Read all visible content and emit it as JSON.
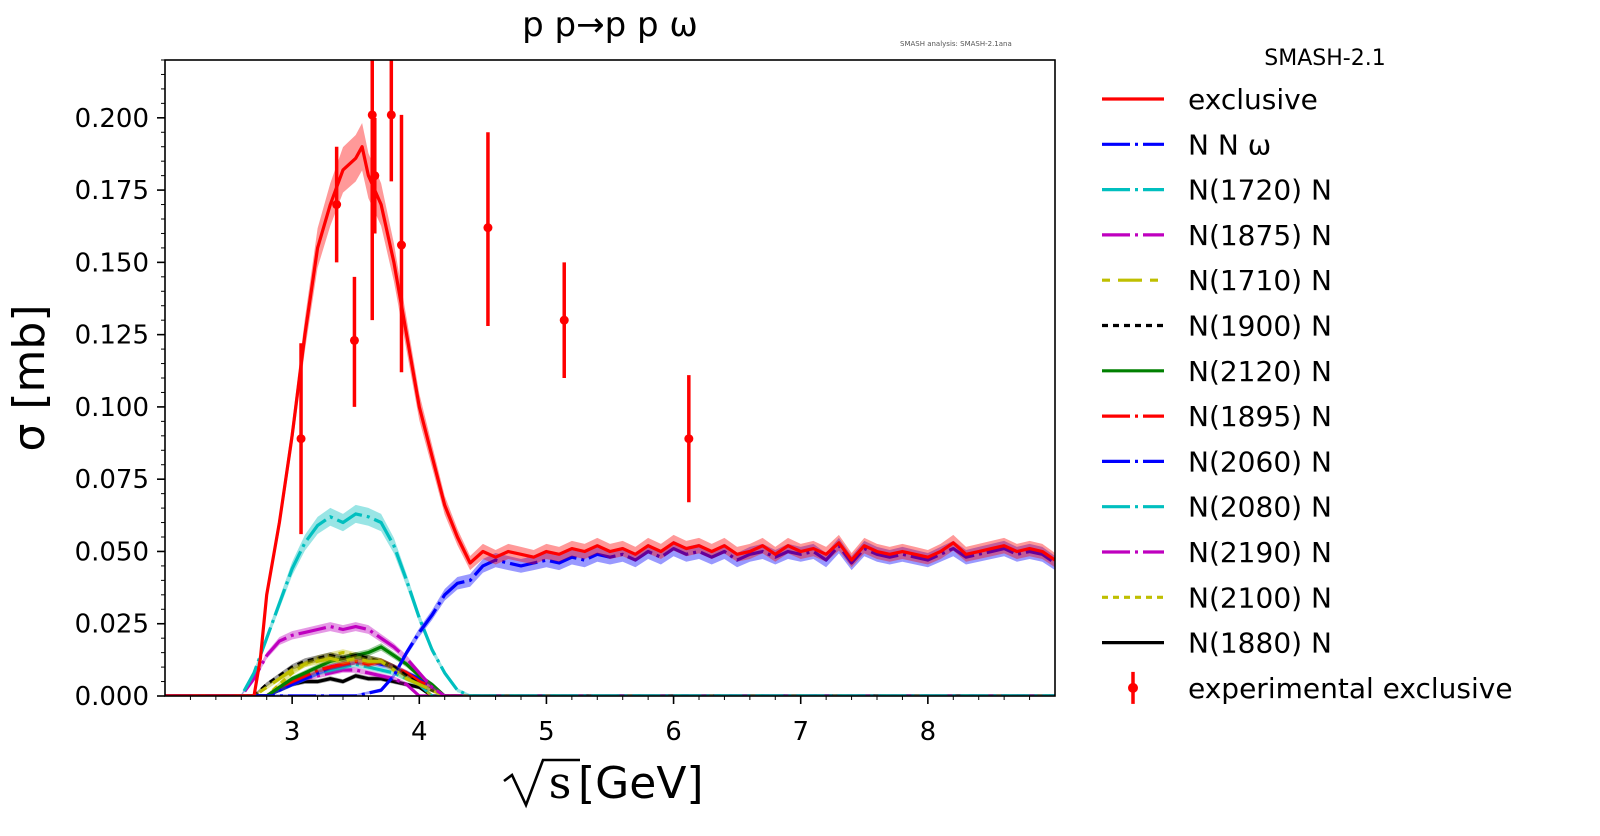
{
  "chart_data": {
    "type": "line",
    "title": "p p→p p ω",
    "version_note": "SMASH analysis: SMASH-2.1ana",
    "xlabel": "√s [GeV]",
    "xlabel_radicand": "s",
    "xlabel_unit": "[GeV]",
    "ylabel": "σ [mb]",
    "xlim": [
      2.0,
      9.0
    ],
    "ylim": [
      0.0,
      0.22
    ],
    "x_ticks": [
      3,
      4,
      5,
      6,
      7,
      8
    ],
    "x_tick_labels": [
      "3",
      "4",
      "5",
      "6",
      "7",
      "8"
    ],
    "y_ticks": [
      0.0,
      0.025,
      0.05,
      0.075,
      0.1,
      0.125,
      0.15,
      0.175,
      0.2
    ],
    "y_tick_labels": [
      "0.000",
      "0.025",
      "0.050",
      "0.075",
      "0.100",
      "0.125",
      "0.150",
      "0.175",
      "0.200"
    ],
    "grid": false,
    "legend": {
      "placement": "outside-right",
      "title": "SMASH-2.1"
    },
    "series": [
      {
        "name": "exclusive",
        "color": "#ff0000",
        "dash": "solid",
        "x": [
          2.0,
          2.7,
          2.75,
          2.8,
          2.9,
          3.0,
          3.1,
          3.2,
          3.3,
          3.4,
          3.5,
          3.55,
          3.6,
          3.7,
          3.8,
          3.9,
          4.0,
          4.1,
          4.2,
          4.3,
          4.4,
          4.5,
          4.6,
          4.7,
          4.8,
          4.9,
          5.0,
          5.1,
          5.2,
          5.3,
          5.4,
          5.5,
          5.6,
          5.7,
          5.8,
          5.9,
          6.0,
          6.1,
          6.2,
          6.3,
          6.4,
          6.5,
          6.6,
          6.7,
          6.8,
          6.9,
          7.0,
          7.1,
          7.2,
          7.3,
          7.4,
          7.5,
          7.6,
          7.7,
          7.8,
          7.9,
          8.0,
          8.1,
          8.2,
          8.3,
          8.4,
          8.5,
          8.6,
          8.7,
          8.8,
          8.9,
          9.0
        ],
        "y": [
          0.0,
          0.0,
          0.013,
          0.035,
          0.06,
          0.09,
          0.125,
          0.155,
          0.17,
          0.182,
          0.186,
          0.19,
          0.18,
          0.17,
          0.15,
          0.125,
          0.1,
          0.083,
          0.066,
          0.055,
          0.046,
          0.05,
          0.048,
          0.05,
          0.049,
          0.048,
          0.05,
          0.049,
          0.051,
          0.05,
          0.052,
          0.05,
          0.051,
          0.049,
          0.052,
          0.05,
          0.053,
          0.051,
          0.052,
          0.05,
          0.052,
          0.049,
          0.05,
          0.052,
          0.049,
          0.052,
          0.05,
          0.051,
          0.049,
          0.053,
          0.047,
          0.052,
          0.05,
          0.049,
          0.05,
          0.049,
          0.048,
          0.05,
          0.053,
          0.049,
          0.05,
          0.051,
          0.052,
          0.05,
          0.051,
          0.05,
          0.047
        ]
      },
      {
        "name": "N N ω",
        "color": "#0000ff",
        "dash": "long-dash-dot",
        "x": [
          2.0,
          3.5,
          3.7,
          3.8,
          3.9,
          4.0,
          4.1,
          4.2,
          4.3,
          4.4,
          4.5,
          4.6,
          4.7,
          4.8,
          4.9,
          5.0,
          5.1,
          5.2,
          5.3,
          5.4,
          5.5,
          5.6,
          5.7,
          5.8,
          5.9,
          6.0,
          6.1,
          6.2,
          6.3,
          6.4,
          6.5,
          6.6,
          6.7,
          6.8,
          6.9,
          7.0,
          7.1,
          7.2,
          7.3,
          7.4,
          7.5,
          7.6,
          7.7,
          7.8,
          7.9,
          8.0,
          8.1,
          8.2,
          8.3,
          8.4,
          8.5,
          8.6,
          8.7,
          8.8,
          8.9,
          9.0
        ],
        "y": [
          0.0,
          0.0,
          0.002,
          0.007,
          0.015,
          0.022,
          0.028,
          0.035,
          0.039,
          0.04,
          0.045,
          0.047,
          0.046,
          0.045,
          0.046,
          0.047,
          0.046,
          0.048,
          0.047,
          0.049,
          0.048,
          0.049,
          0.047,
          0.05,
          0.048,
          0.051,
          0.049,
          0.05,
          0.048,
          0.05,
          0.047,
          0.049,
          0.05,
          0.048,
          0.05,
          0.049,
          0.05,
          0.047,
          0.052,
          0.046,
          0.051,
          0.049,
          0.048,
          0.049,
          0.048,
          0.047,
          0.049,
          0.051,
          0.048,
          0.049,
          0.05,
          0.051,
          0.049,
          0.05,
          0.049,
          0.046
        ]
      },
      {
        "name": "N(1720) N",
        "color": "#00bfbf",
        "dash": "long-dash-dot",
        "x": [
          2.0,
          2.6,
          2.7,
          2.8,
          2.9,
          3.0,
          3.1,
          3.2,
          3.3,
          3.4,
          3.5,
          3.6,
          3.7,
          3.8,
          3.9,
          4.0,
          4.1,
          4.2,
          4.3,
          4.4,
          9.0
        ],
        "y": [
          0.0,
          0.0,
          0.008,
          0.02,
          0.032,
          0.044,
          0.053,
          0.059,
          0.062,
          0.06,
          0.063,
          0.062,
          0.06,
          0.052,
          0.04,
          0.027,
          0.016,
          0.008,
          0.002,
          0.0,
          0.0
        ]
      },
      {
        "name": "N(1875) N",
        "color": "#bf00bf",
        "dash": "long-dash-dot",
        "x": [
          2.0,
          2.6,
          2.7,
          2.8,
          2.9,
          3.0,
          3.1,
          3.2,
          3.3,
          3.4,
          3.5,
          3.6,
          3.7,
          3.8,
          3.9,
          4.0,
          4.1,
          4.2,
          9.0
        ],
        "y": [
          0.0,
          0.0,
          0.006,
          0.014,
          0.019,
          0.021,
          0.022,
          0.023,
          0.024,
          0.023,
          0.024,
          0.023,
          0.02,
          0.017,
          0.013,
          0.008,
          0.003,
          0.0,
          0.0
        ]
      },
      {
        "name": "N(1710) N",
        "color": "#bfbf00",
        "dash": "dash-long-dash",
        "x": [
          2.0,
          2.7,
          2.8,
          2.9,
          3.0,
          3.1,
          3.2,
          3.3,
          3.4,
          3.5,
          3.6,
          3.7,
          3.8,
          3.9,
          4.0,
          4.1,
          4.2,
          9.0
        ],
        "y": [
          0.0,
          0.0,
          0.003,
          0.006,
          0.009,
          0.011,
          0.012,
          0.013,
          0.012,
          0.013,
          0.012,
          0.012,
          0.009,
          0.006,
          0.004,
          0.002,
          0.0,
          0.0
        ]
      },
      {
        "name": "N(1900) N",
        "color": "#000000",
        "dash": "short-dash",
        "x": [
          2.0,
          2.7,
          2.8,
          2.9,
          3.0,
          3.1,
          3.2,
          3.3,
          3.4,
          3.5,
          3.6,
          3.7,
          3.8,
          3.9,
          4.0,
          4.1,
          4.2,
          9.0
        ],
        "y": [
          0.0,
          0.0,
          0.004,
          0.007,
          0.01,
          0.012,
          0.013,
          0.014,
          0.013,
          0.014,
          0.013,
          0.012,
          0.01,
          0.007,
          0.004,
          0.002,
          0.0,
          0.0
        ]
      },
      {
        "name": "N(2120) N",
        "color": "#008000",
        "dash": "solid",
        "x": [
          2.0,
          2.8,
          2.9,
          3.0,
          3.1,
          3.2,
          3.3,
          3.4,
          3.5,
          3.6,
          3.7,
          3.8,
          3.9,
          4.0,
          4.1,
          4.2,
          9.0
        ],
        "y": [
          0.0,
          0.0,
          0.003,
          0.006,
          0.008,
          0.01,
          0.012,
          0.013,
          0.014,
          0.015,
          0.017,
          0.014,
          0.011,
          0.007,
          0.004,
          0.0,
          0.0
        ]
      },
      {
        "name": "N(1895) N",
        "color": "#ff0000",
        "dash": "long-dash-dot",
        "x": [
          2.0,
          2.8,
          2.9,
          3.0,
          3.1,
          3.2,
          3.3,
          3.4,
          3.5,
          3.6,
          3.7,
          3.8,
          3.9,
          4.0,
          4.1,
          4.2,
          9.0
        ],
        "y": [
          0.0,
          0.0,
          0.003,
          0.005,
          0.007,
          0.009,
          0.01,
          0.011,
          0.012,
          0.011,
          0.012,
          0.01,
          0.008,
          0.005,
          0.003,
          0.0,
          0.0
        ]
      },
      {
        "name": "N(2060) N",
        "color": "#0000ff",
        "dash": "long-dash-dot",
        "x": [
          2.0,
          2.8,
          2.9,
          3.0,
          3.1,
          3.2,
          3.3,
          3.4,
          3.5,
          3.6,
          3.7,
          3.8,
          3.9,
          4.0,
          4.1,
          4.2,
          9.0
        ],
        "y": [
          0.0,
          0.0,
          0.002,
          0.004,
          0.006,
          0.008,
          0.01,
          0.011,
          0.012,
          0.012,
          0.011,
          0.01,
          0.008,
          0.006,
          0.003,
          0.0,
          0.0
        ]
      },
      {
        "name": "N(2080) N",
        "color": "#00bfbf",
        "dash": "long-dash-dot",
        "x": [
          2.0,
          2.8,
          2.9,
          3.0,
          3.1,
          3.2,
          3.3,
          3.4,
          3.5,
          3.6,
          3.7,
          3.8,
          3.9,
          4.0,
          4.1,
          9.0
        ],
        "y": [
          0.0,
          0.0,
          0.002,
          0.004,
          0.006,
          0.008,
          0.009,
          0.01,
          0.011,
          0.01,
          0.009,
          0.008,
          0.006,
          0.004,
          0.0,
          0.0
        ]
      },
      {
        "name": "N(2190) N",
        "color": "#bf00bf",
        "dash": "long-dash-dot",
        "x": [
          2.0,
          2.8,
          2.9,
          3.0,
          3.1,
          3.2,
          3.3,
          3.4,
          3.5,
          3.6,
          3.7,
          3.8,
          3.9,
          4.0,
          9.0
        ],
        "y": [
          0.0,
          0.0,
          0.002,
          0.004,
          0.006,
          0.007,
          0.008,
          0.009,
          0.009,
          0.008,
          0.007,
          0.006,
          0.004,
          0.0,
          0.0
        ]
      },
      {
        "name": "N(2100) N",
        "color": "#bfbf00",
        "dash": "short-dash",
        "x": [
          2.0,
          2.8,
          2.9,
          3.0,
          3.1,
          3.2,
          3.3,
          3.4,
          3.5,
          3.6,
          3.7,
          3.8,
          3.9,
          4.0,
          4.1,
          9.0
        ],
        "y": [
          0.0,
          0.0,
          0.004,
          0.008,
          0.011,
          0.013,
          0.014,
          0.015,
          0.014,
          0.013,
          0.012,
          0.01,
          0.007,
          0.004,
          0.0,
          0.0
        ]
      },
      {
        "name": "N(1880) N",
        "color": "#000000",
        "dash": "solid",
        "x": [
          2.0,
          2.8,
          2.9,
          3.0,
          3.1,
          3.2,
          3.3,
          3.4,
          3.5,
          3.6,
          3.7,
          3.8,
          3.9,
          4.0,
          4.1,
          9.0
        ],
        "y": [
          0.0,
          0.0,
          0.002,
          0.004,
          0.005,
          0.005,
          0.006,
          0.005,
          0.007,
          0.006,
          0.006,
          0.005,
          0.004,
          0.003,
          0.0,
          0.0
        ]
      }
    ],
    "experimental": {
      "name": "experimental exclusive",
      "color": "#ff0000",
      "points": [
        {
          "x": 3.07,
          "y": 0.089,
          "ylow": 0.056,
          "yhigh": 0.122
        },
        {
          "x": 3.35,
          "y": 0.17,
          "ylow": 0.15,
          "yhigh": 0.19
        },
        {
          "x": 3.49,
          "y": 0.123,
          "ylow": 0.1,
          "yhigh": 0.145
        },
        {
          "x": 3.63,
          "y": 0.201,
          "ylow": 0.13,
          "yhigh": 0.228
        },
        {
          "x": 3.65,
          "y": 0.18,
          "ylow": 0.16,
          "yhigh": 0.2
        },
        {
          "x": 3.78,
          "y": 0.201,
          "ylow": 0.178,
          "yhigh": 0.228
        },
        {
          "x": 3.86,
          "y": 0.156,
          "ylow": 0.112,
          "yhigh": 0.201
        },
        {
          "x": 4.54,
          "y": 0.162,
          "ylow": 0.128,
          "yhigh": 0.195
        },
        {
          "x": 5.14,
          "y": 0.13,
          "ylow": 0.11,
          "yhigh": 0.15
        },
        {
          "x": 6.12,
          "y": 0.089,
          "ylow": 0.067,
          "yhigh": 0.111
        }
      ]
    }
  }
}
